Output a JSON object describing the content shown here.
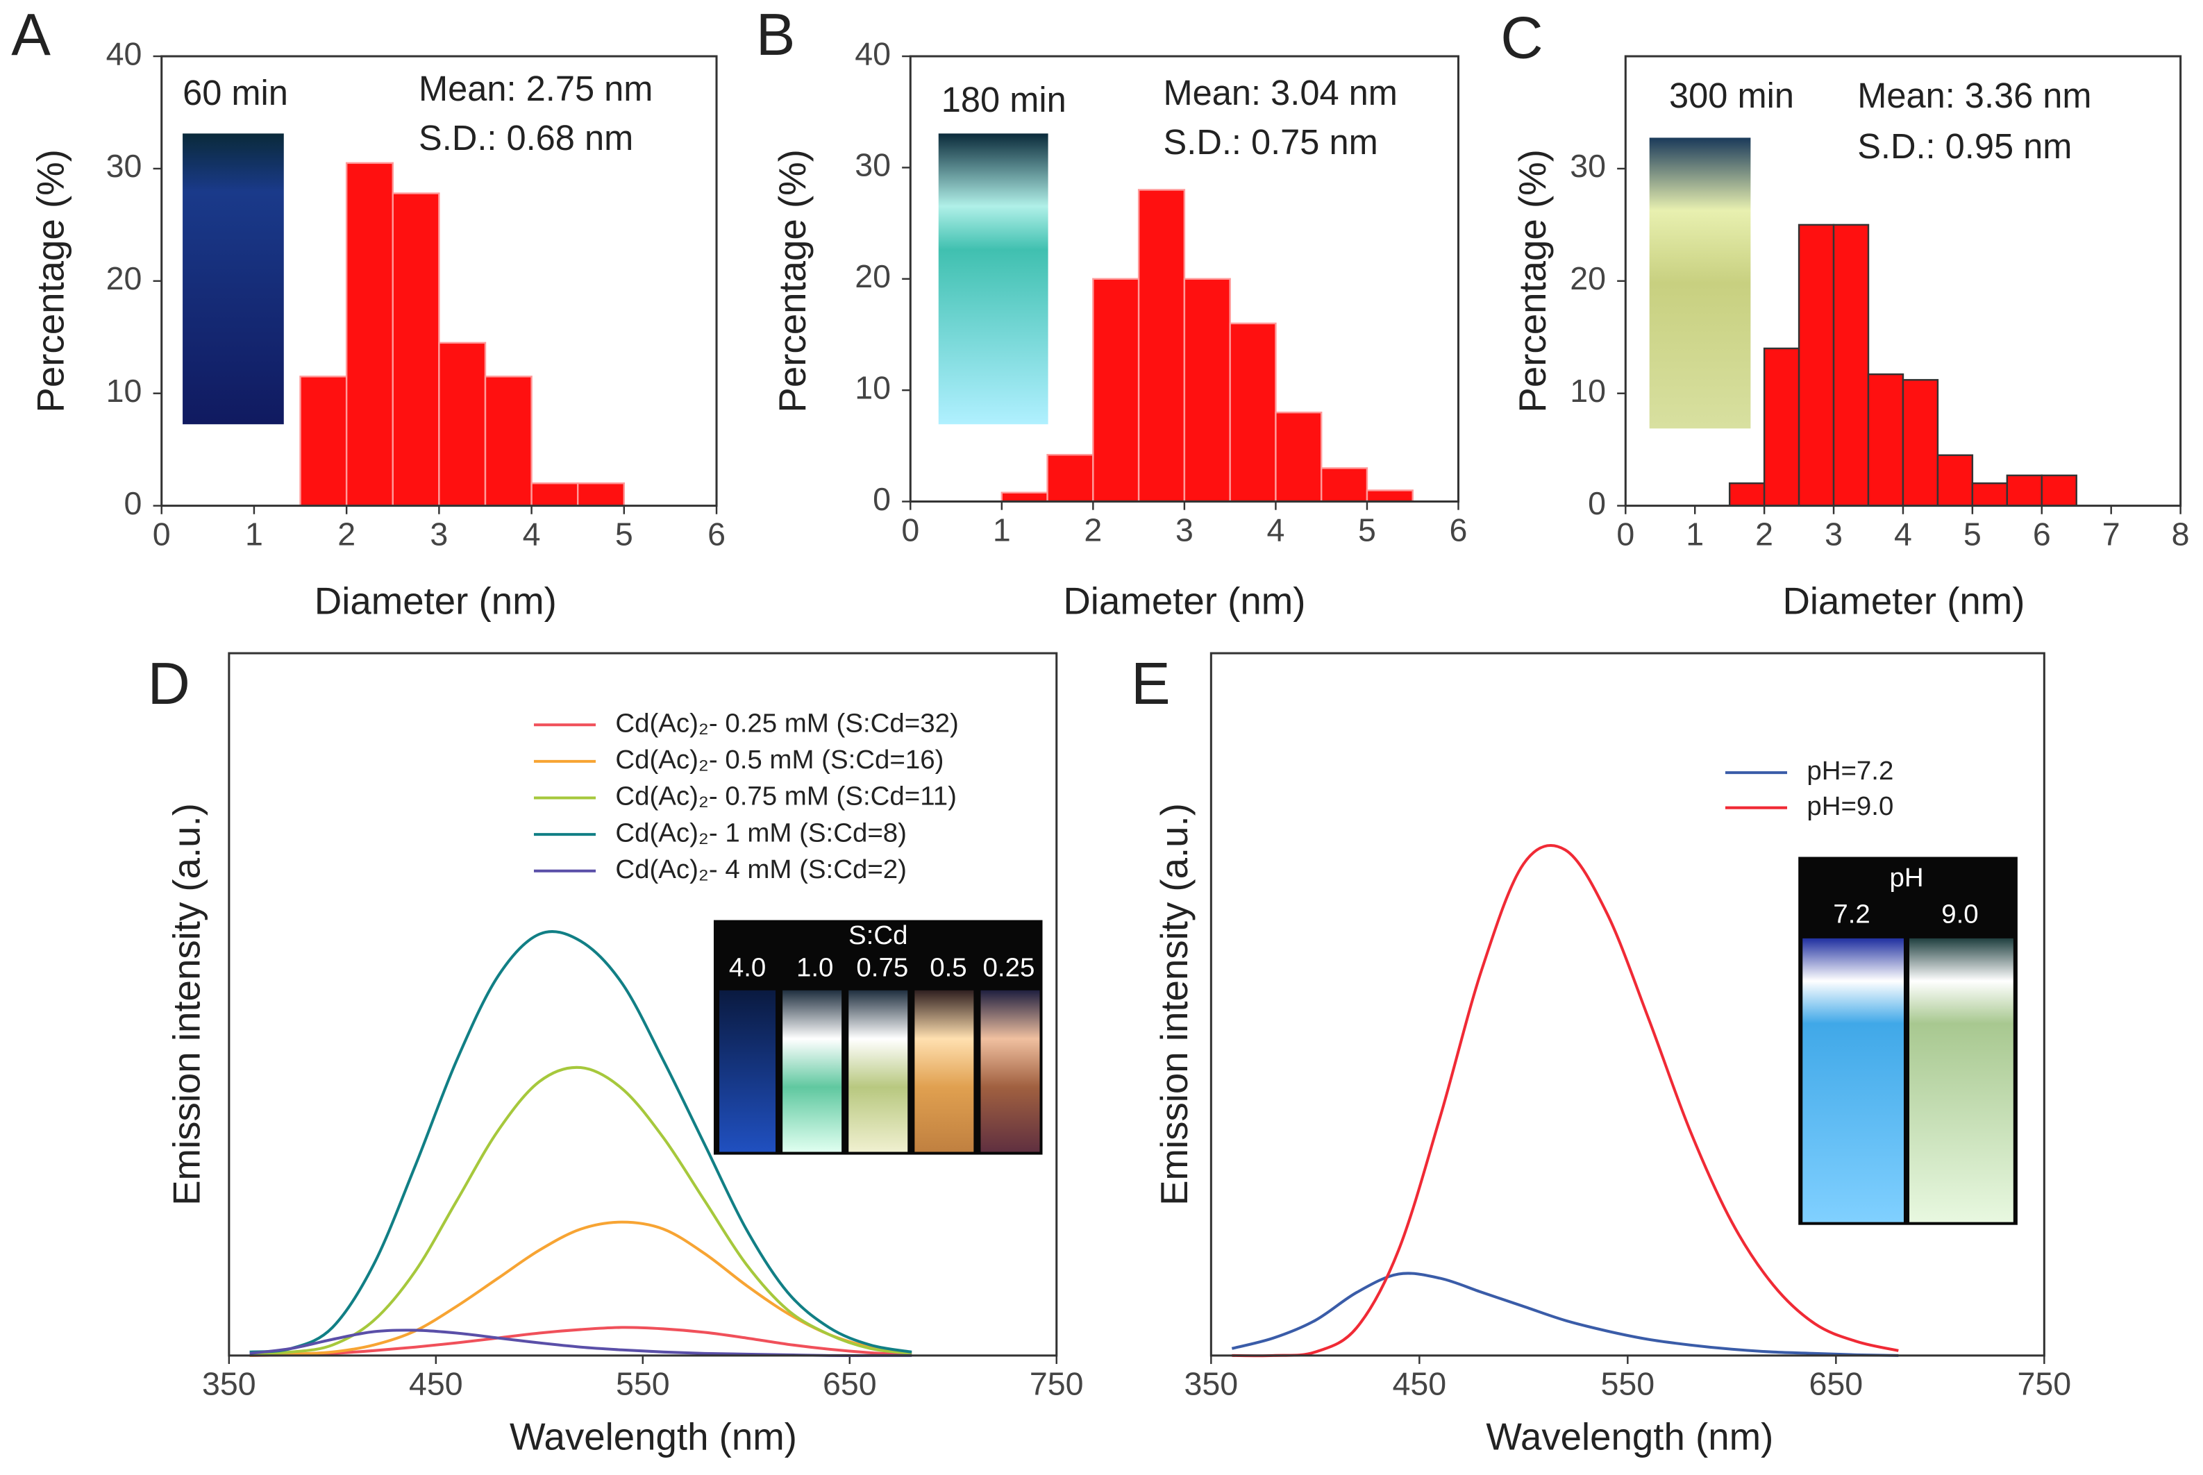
{
  "chart_data": [
    {
      "type": "histogram",
      "panel_label": "A",
      "xlabel": "Diameter (nm)",
      "ylabel": "Percentage (%)",
      "annotations": [
        "60 min",
        "Mean: 2.75 nm",
        "S.D.:  0.68 nm"
      ],
      "bins": [
        1.5,
        2,
        2.5,
        3,
        3.5,
        4,
        4.5,
        5
      ],
      "values": [
        11.5,
        30.5,
        27.8,
        14.5,
        11.5,
        2,
        2
      ],
      "color": "#ff1010",
      "edgecolor": "#ff9a9a",
      "xlim": [
        0,
        6
      ],
      "xticks": [
        0,
        1,
        2,
        3,
        4,
        5,
        6
      ],
      "ylim": [
        0,
        40
      ],
      "yticks": [
        0,
        10,
        20,
        30,
        40
      ]
    },
    {
      "type": "histogram",
      "panel_label": "B",
      "xlabel": "Diameter (nm)",
      "ylabel": "Percentage (%)",
      "annotations": [
        "180 min",
        "Mean: 3.04 nm",
        "S.D.:  0.75 nm"
      ],
      "bins": [
        1,
        1.5,
        2,
        2.5,
        3,
        3.5,
        4,
        4.5,
        5,
        5.5
      ],
      "values": [
        0.8,
        4.2,
        20,
        28,
        20,
        16,
        8,
        3,
        1
      ],
      "color": "#ff1010",
      "edgecolor": "#ff9a9a",
      "xlim": [
        0,
        6
      ],
      "xticks": [
        0,
        1,
        2,
        3,
        4,
        5,
        6
      ],
      "ylim": [
        0,
        40
      ],
      "yticks": [
        0,
        10,
        20,
        30,
        40
      ]
    },
    {
      "type": "histogram",
      "panel_label": "C",
      "xlabel": "Diameter (nm)",
      "ylabel": "Percentage (%)",
      "annotations": [
        "300 min",
        "Mean: 3.36 nm",
        "S.D.:  0.95 nm"
      ],
      "bins": [
        1.5,
        2,
        2.5,
        3,
        3.5,
        4,
        4.5,
        5,
        5.5,
        6,
        6.5
      ],
      "values": [
        2,
        14,
        25,
        25,
        11.7,
        11.2,
        4.5,
        2,
        2.7,
        2.7
      ],
      "color": "#ff1010",
      "edgecolor": "#333333",
      "xlim": [
        0,
        8
      ],
      "xticks": [
        0,
        1,
        2,
        3,
        4,
        5,
        6,
        7,
        8
      ],
      "ylim": [
        0,
        40
      ],
      "yticks": [
        0,
        10,
        20,
        30
      ]
    },
    {
      "type": "line",
      "panel_label": "D",
      "xlabel": "Wavelength (nm)",
      "ylabel": "Emission intensity (a.u.)",
      "inset_title": "S:Cd",
      "inset_labels": [
        "4.0",
        "1.0",
        "0.75",
        "0.5",
        "0.25"
      ],
      "x": [
        360,
        380,
        400,
        420,
        440,
        460,
        480,
        500,
        520,
        540,
        560,
        580,
        600,
        620,
        640,
        660,
        680
      ],
      "series": [
        {
          "name": "Cd(Ac)₂- 0.25 mM (S:Cd=32)",
          "color": "#f0505a",
          "values": [
            0,
            0.1,
            0.3,
            0.7,
            1.2,
            1.8,
            2.5,
            3.2,
            3.7,
            4,
            3.8,
            3.3,
            2.5,
            1.6,
            0.9,
            0.4,
            0.1
          ]
        },
        {
          "name": "Cd(Ac)₂- 0.5 mM (S:Cd=16)",
          "color": "#f7a433",
          "values": [
            0,
            0.2,
            0.5,
            1.5,
            3.5,
            7,
            11,
            15,
            18,
            19,
            18,
            14.5,
            10,
            6,
            3,
            1.2,
            0.3
          ]
        },
        {
          "name": "Cd(Ac)₂- 0.75 mM (S:Cd=11)",
          "color": "#a6c83c",
          "values": [
            0.3,
            0.5,
            1.5,
            5,
            12,
            22,
            32,
            39,
            41,
            38,
            31,
            22,
            13,
            6.5,
            3,
            1,
            0.3
          ]
        },
        {
          "name": "Cd(Ac)₂- 1 mM (S:Cd=8)",
          "color": "#117f85",
          "values": [
            0.5,
            1,
            4,
            13,
            27,
            42,
            54,
            60,
            59,
            53,
            42,
            30,
            18,
            9,
            4,
            1.5,
            0.5
          ]
        },
        {
          "name": "Cd(Ac)₂- 4 mM (S:Cd=2)",
          "color": "#5a4fa8",
          "values": [
            0.3,
            1,
            2.3,
            3.4,
            3.6,
            3.2,
            2.5,
            1.8,
            1.2,
            0.8,
            0.5,
            0.3,
            0.2,
            0.1,
            0,
            0,
            0
          ]
        }
      ],
      "xlim": [
        350,
        750
      ],
      "xticks": [
        350,
        450,
        550,
        650,
        750
      ],
      "ylim": [
        0,
        100
      ]
    },
    {
      "type": "line",
      "panel_label": "E",
      "xlabel": "Wavelength (nm)",
      "ylabel": "Emission intensity (a.u.)",
      "inset_title": "pH",
      "inset_labels": [
        "7.2",
        "9.0"
      ],
      "x": [
        360,
        380,
        400,
        420,
        440,
        460,
        480,
        500,
        520,
        540,
        560,
        580,
        600,
        620,
        640,
        660,
        680
      ],
      "series": [
        {
          "name": "pH=7.2",
          "color": "#3a5ca8",
          "values": [
            1,
            2.5,
            5,
            9,
            11.6,
            11,
            9,
            7,
            5,
            3.5,
            2.3,
            1.5,
            0.9,
            0.5,
            0.3,
            0.1,
            0
          ]
        },
        {
          "name": "pH=9.0",
          "color": "#f02a35",
          "values": [
            0,
            0,
            0.5,
            4,
            15,
            34,
            55,
            70,
            72,
            63,
            48,
            32,
            19,
            10,
            4.5,
            2,
            0.7
          ]
        }
      ],
      "xlim": [
        350,
        750
      ],
      "xticks": [
        350,
        450,
        550,
        650,
        750
      ],
      "ylim": [
        0,
        100
      ]
    }
  ]
}
